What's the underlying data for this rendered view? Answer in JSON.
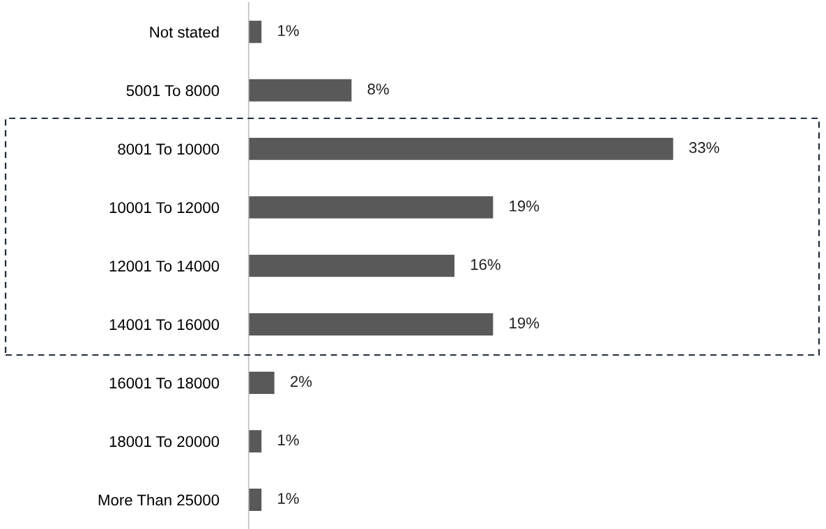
{
  "chart_data": {
    "type": "bar",
    "orientation": "horizontal",
    "categories": [
      "Not stated",
      "5001 To 8000",
      "8001 To 10000",
      "10001 To 12000",
      "12001 To 14000",
      "14001 To 16000",
      "16001 To 18000",
      "18001 To 20000",
      "More Than 25000"
    ],
    "values": [
      1,
      8,
      33,
      19,
      16,
      19,
      2,
      1,
      1
    ],
    "value_labels": [
      "1%",
      "8%",
      "33%",
      "19%",
      "16%",
      "19%",
      "2%",
      "1%",
      "1%"
    ],
    "color": "#595959",
    "grid": false
  }
}
